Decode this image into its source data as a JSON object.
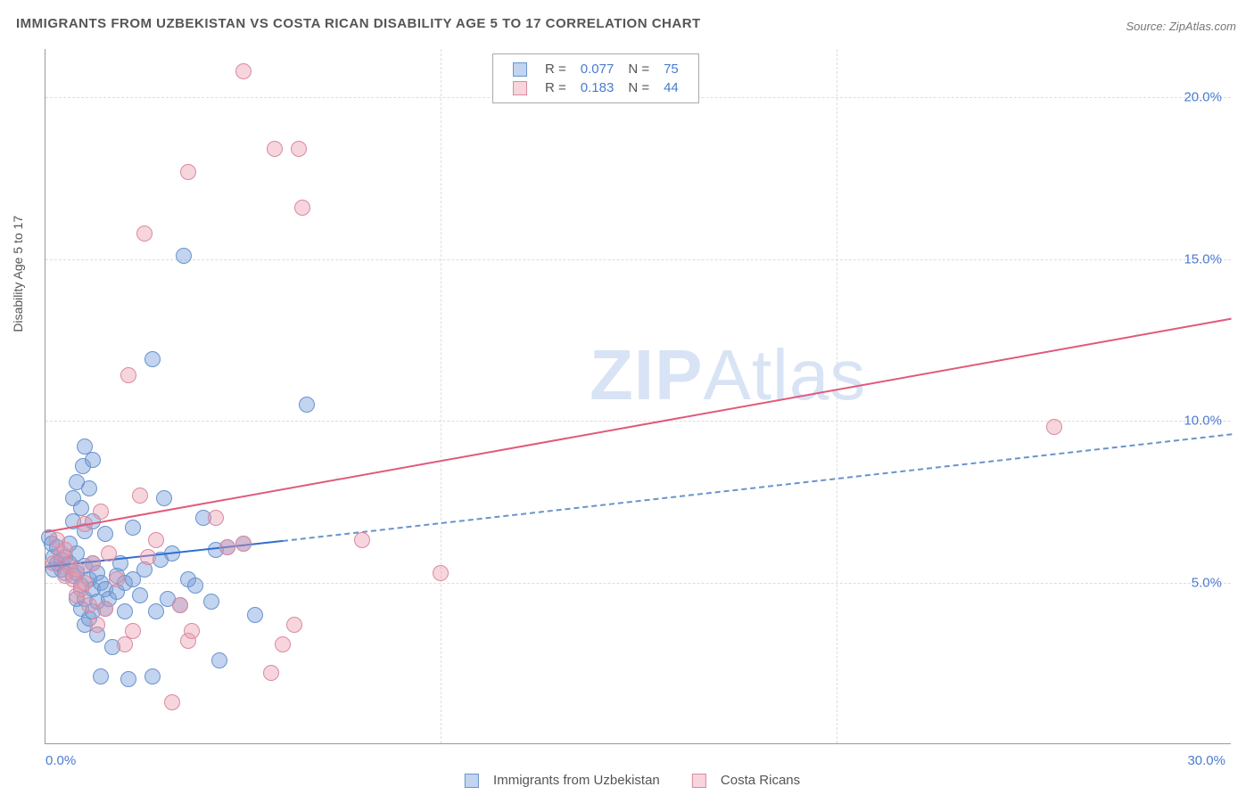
{
  "title": "IMMIGRANTS FROM UZBEKISTAN VS COSTA RICAN DISABILITY AGE 5 TO 17 CORRELATION CHART",
  "source": "Source: ZipAtlas.com",
  "ylabel": "Disability Age 5 to 17",
  "watermark_bold": "ZIP",
  "watermark_light": "Atlas",
  "chart": {
    "type": "scatter",
    "xlim": [
      0,
      30
    ],
    "ylim": [
      0,
      21.5
    ],
    "xticks": [
      0,
      10,
      20,
      30
    ],
    "xtick_labels": [
      "0.0%",
      "",
      "",
      "30.0%"
    ],
    "yticks": [
      5,
      10,
      15,
      20
    ],
    "ytick_labels": [
      "5.0%",
      "10.0%",
      "15.0%",
      "20.0%"
    ],
    "grid_color": "#dddddd",
    "background_color": "#ffffff",
    "marker_size": 18,
    "series": [
      {
        "name": "Immigrants from Uzbekistan",
        "r_label": "R =",
        "r": "0.077",
        "n_label": "N =",
        "n": "75",
        "color_fill": "rgba(120,160,220,0.45)",
        "color_stroke": "#6a93cc",
        "trend_color": "#2e6fd0",
        "trend_dash_color": "#6a93cc",
        "trend_solid": {
          "x1": 0,
          "y1": 5.5,
          "x2": 6.0,
          "y2": 6.3
        },
        "trend_dash": {
          "x1": 6.0,
          "y1": 6.3,
          "x2": 30,
          "y2": 9.6
        },
        "points": [
          [
            0.1,
            6.4
          ],
          [
            0.2,
            5.4
          ],
          [
            0.2,
            5.8
          ],
          [
            0.15,
            6.2
          ],
          [
            0.3,
            5.6
          ],
          [
            0.3,
            6.1
          ],
          [
            0.4,
            5.4
          ],
          [
            0.4,
            5.7
          ],
          [
            0.5,
            5.3
          ],
          [
            0.5,
            5.8
          ],
          [
            0.6,
            5.6
          ],
          [
            0.6,
            6.2
          ],
          [
            0.7,
            5.2
          ],
          [
            0.7,
            6.9
          ],
          [
            0.7,
            7.6
          ],
          [
            0.8,
            4.5
          ],
          [
            0.8,
            5.3
          ],
          [
            0.8,
            5.9
          ],
          [
            0.8,
            8.1
          ],
          [
            0.9,
            4.2
          ],
          [
            0.9,
            4.9
          ],
          [
            0.9,
            7.3
          ],
          [
            0.95,
            8.6
          ],
          [
            1.0,
            3.7
          ],
          [
            1.0,
            4.5
          ],
          [
            1.0,
            5.5
          ],
          [
            1.0,
            6.6
          ],
          [
            1.0,
            9.2
          ],
          [
            1.1,
            3.9
          ],
          [
            1.1,
            5.1
          ],
          [
            1.1,
            7.9
          ],
          [
            1.2,
            4.1
          ],
          [
            1.2,
            4.8
          ],
          [
            1.2,
            5.6
          ],
          [
            1.2,
            6.9
          ],
          [
            1.2,
            8.8
          ],
          [
            1.3,
            3.4
          ],
          [
            1.3,
            4.4
          ],
          [
            1.3,
            5.3
          ],
          [
            1.4,
            2.1
          ],
          [
            1.4,
            5.0
          ],
          [
            1.5,
            4.2
          ],
          [
            1.5,
            4.8
          ],
          [
            1.5,
            6.5
          ],
          [
            1.6,
            4.5
          ],
          [
            1.7,
            3.0
          ],
          [
            1.8,
            4.7
          ],
          [
            1.8,
            5.2
          ],
          [
            1.9,
            5.6
          ],
          [
            2.0,
            4.1
          ],
          [
            2.0,
            5.0
          ],
          [
            2.1,
            2.0
          ],
          [
            2.2,
            5.1
          ],
          [
            2.2,
            6.7
          ],
          [
            2.4,
            4.6
          ],
          [
            2.5,
            5.4
          ],
          [
            2.7,
            2.1
          ],
          [
            2.8,
            4.1
          ],
          [
            2.9,
            5.7
          ],
          [
            3.0,
            7.6
          ],
          [
            3.1,
            4.5
          ],
          [
            3.2,
            5.9
          ],
          [
            3.4,
            4.3
          ],
          [
            3.6,
            5.1
          ],
          [
            3.8,
            4.9
          ],
          [
            4.0,
            7.0
          ],
          [
            4.2,
            4.4
          ],
          [
            4.3,
            6.0
          ],
          [
            4.4,
            2.6
          ],
          [
            4.6,
            6.1
          ],
          [
            5.0,
            6.2
          ],
          [
            5.3,
            4.0
          ],
          [
            3.5,
            15.1
          ],
          [
            2.7,
            11.9
          ],
          [
            6.6,
            10.5
          ]
        ]
      },
      {
        "name": "Costa Ricans",
        "r_label": "R =",
        "r": "0.183",
        "n_label": "N =",
        "n": "44",
        "color_fill": "rgba(235,150,170,0.40)",
        "color_stroke": "#d98aa0",
        "trend_color": "#e05a7a",
        "trend_solid": {
          "x1": 0,
          "y1": 6.6,
          "x2": 30,
          "y2": 13.2
        },
        "points": [
          [
            0.2,
            5.6
          ],
          [
            0.3,
            6.3
          ],
          [
            0.4,
            5.9
          ],
          [
            0.5,
            5.2
          ],
          [
            0.5,
            6.0
          ],
          [
            0.6,
            5.5
          ],
          [
            0.7,
            5.1
          ],
          [
            0.8,
            4.6
          ],
          [
            0.8,
            5.4
          ],
          [
            0.9,
            4.8
          ],
          [
            1.0,
            6.8
          ],
          [
            1.0,
            5.0
          ],
          [
            1.1,
            4.3
          ],
          [
            1.2,
            5.6
          ],
          [
            1.3,
            3.7
          ],
          [
            1.4,
            7.2
          ],
          [
            1.5,
            4.2
          ],
          [
            1.6,
            5.9
          ],
          [
            1.8,
            5.1
          ],
          [
            2.0,
            3.1
          ],
          [
            2.2,
            3.5
          ],
          [
            2.4,
            7.7
          ],
          [
            2.6,
            5.8
          ],
          [
            2.8,
            6.3
          ],
          [
            3.2,
            1.3
          ],
          [
            3.4,
            4.3
          ],
          [
            3.6,
            3.2
          ],
          [
            3.7,
            3.5
          ],
          [
            4.3,
            7.0
          ],
          [
            4.6,
            6.1
          ],
          [
            5.0,
            6.2
          ],
          [
            5.7,
            2.2
          ],
          [
            6.0,
            3.1
          ],
          [
            6.3,
            3.7
          ],
          [
            8.0,
            6.3
          ],
          [
            10.0,
            5.3
          ],
          [
            2.1,
            11.4
          ],
          [
            2.5,
            15.8
          ],
          [
            3.6,
            17.7
          ],
          [
            5.0,
            20.8
          ],
          [
            5.8,
            18.4
          ],
          [
            6.4,
            18.4
          ],
          [
            6.5,
            16.6
          ],
          [
            25.5,
            9.8
          ]
        ]
      }
    ]
  },
  "legend_bottom": [
    "Immigrants from Uzbekistan",
    "Costa Ricans"
  ]
}
